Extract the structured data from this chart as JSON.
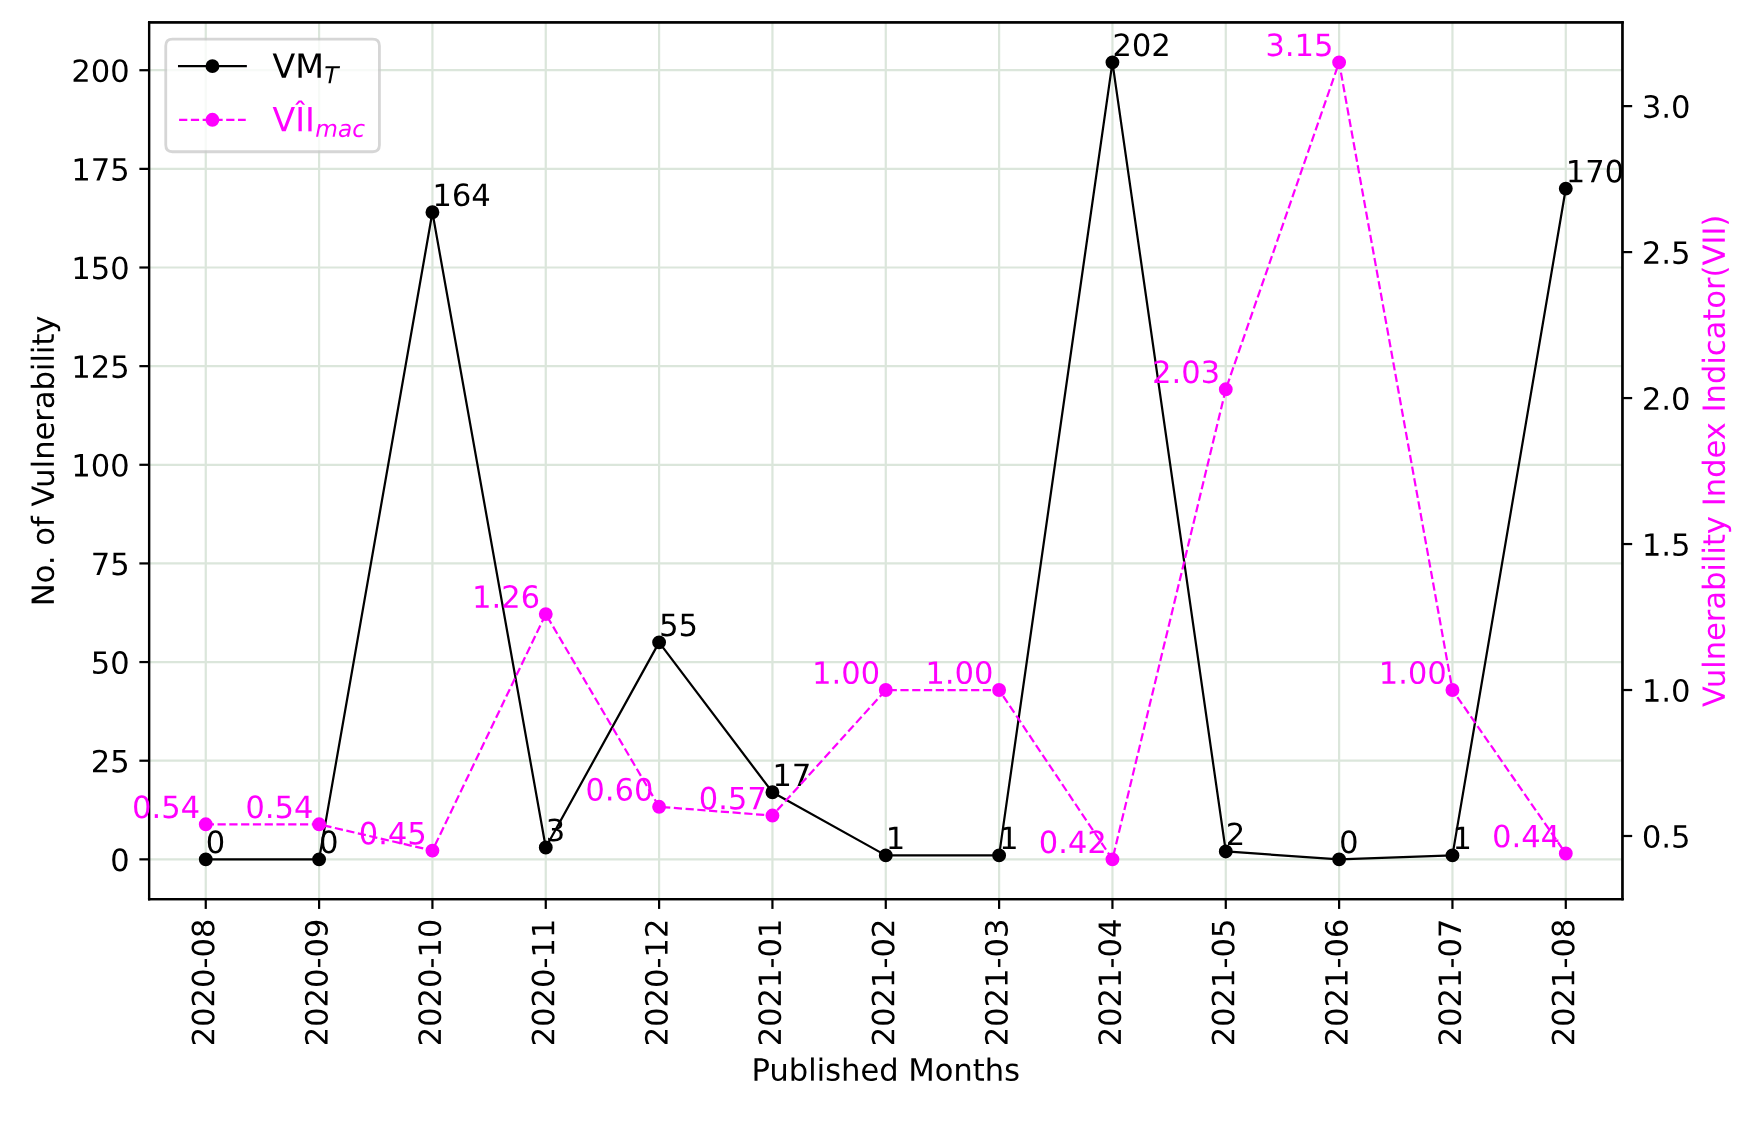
{
  "chart_data": {
    "type": "line",
    "xlabel": "Published Months",
    "ylabel": "No. of Vulnerability",
    "y2label": "Vulnerability Index Indicator(VII)",
    "categories": [
      "2020-08",
      "2020-09",
      "2020-10",
      "2020-11",
      "2020-12",
      "2021-01",
      "2021-02",
      "2021-03",
      "2021-04",
      "2021-05",
      "2021-06",
      "2021-07",
      "2021-08"
    ],
    "series": [
      {
        "name": "VM$_{T}$",
        "color": "#000000",
        "values": [
          0,
          0,
          164,
          3,
          55,
          17,
          1,
          1,
          202,
          2,
          0,
          1,
          170
        ],
        "line_style": "solid",
        "data_labels": true
      },
      {
        "name": "VÎI$_{mac}$",
        "color": "#ff00ff",
        "axis": "y2",
        "values": [
          0.54,
          0.54,
          0.45,
          1.26,
          0.6,
          0.57,
          1.0,
          1.0,
          0.42,
          2.03,
          3.15,
          1.0,
          0.44
        ],
        "value_labels": [
          "0.54",
          "0.54",
          "0.45",
          "1.26",
          "0.60",
          "0.57",
          "1.00",
          "1.00",
          "0.42",
          "2.03",
          "3.15",
          "1.00",
          "0.44"
        ],
        "line_style": "dashed"
      }
    ],
    "ylim": [
      -10.1,
      212.1
    ],
    "yticks": [
      0,
      25,
      50,
      75,
      100,
      125,
      150,
      175,
      200
    ],
    "y2lim": [
      0.2835,
      3.2865
    ],
    "y2ticks": [
      0.5,
      {
        "value": 1,
        "label": "1.0"
      },
      1.5,
      {
        "value": 2,
        "label": "2.0"
      },
      2.5,
      {
        "value": 3,
        "label": "3.0"
      }
    ],
    "grid": true,
    "legend": "top left",
    "marker": "circle"
  }
}
